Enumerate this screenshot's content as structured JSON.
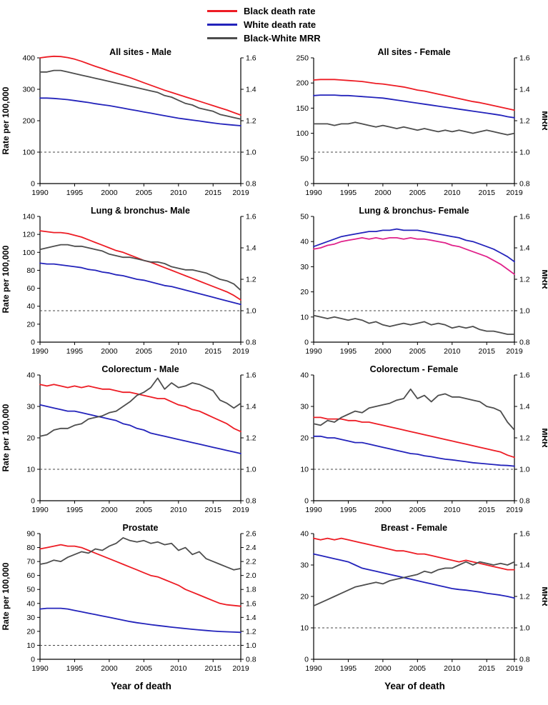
{
  "legend": {
    "items": [
      {
        "label": "Black death rate",
        "color": "#ed1c24"
      },
      {
        "label": "White death rate",
        "color": "#2323bb"
      },
      {
        "label": "Black-White MRR",
        "color": "#4d4d4d"
      }
    ]
  },
  "xlabel": "Year of death",
  "ylabel_left": "Rate per 100,000",
  "ylabel_right": "MRR",
  "years": [
    1990,
    1991,
    1992,
    1993,
    1994,
    1995,
    1996,
    1997,
    1998,
    1999,
    2000,
    2001,
    2002,
    2003,
    2004,
    2005,
    2006,
    2007,
    2008,
    2009,
    2010,
    2011,
    2012,
    2013,
    2014,
    2015,
    2016,
    2017,
    2018,
    2019
  ],
  "x_ticks": [
    1990,
    1995,
    2000,
    2005,
    2010,
    2015,
    2019
  ],
  "chart_data": [
    {
      "type": "line",
      "title": "All sites - Male",
      "left_axis": {
        "min": 0,
        "max": 400,
        "step": 100
      },
      "right_axis": {
        "min": 0.8,
        "max": 1.6,
        "step": 0.2
      },
      "reference_line_right": 1.0,
      "show_left_label": true,
      "show_right_label": false,
      "series": [
        {
          "name": "Black death rate",
          "axis": "left",
          "color": "#ed1c24",
          "values": [
            400,
            403,
            405,
            404,
            401,
            396,
            389,
            381,
            373,
            366,
            358,
            351,
            344,
            337,
            329,
            321,
            313,
            305,
            297,
            290,
            283,
            276,
            269,
            262,
            255,
            248,
            241,
            234,
            226,
            218
          ]
        },
        {
          "name": "White death rate",
          "axis": "left",
          "color": "#2323bb",
          "values": [
            272,
            272,
            271,
            269,
            267,
            264,
            261,
            258,
            254,
            251,
            248,
            244,
            240,
            236,
            232,
            228,
            224,
            220,
            216,
            212,
            208,
            205,
            202,
            199,
            196,
            193,
            190,
            188,
            186,
            184
          ]
        },
        {
          "name": "Black-White MRR",
          "axis": "right",
          "color": "#4d4d4d",
          "values": [
            1.51,
            1.51,
            1.52,
            1.52,
            1.51,
            1.5,
            1.49,
            1.48,
            1.47,
            1.46,
            1.45,
            1.44,
            1.43,
            1.42,
            1.41,
            1.4,
            1.39,
            1.38,
            1.36,
            1.35,
            1.33,
            1.31,
            1.3,
            1.28,
            1.27,
            1.26,
            1.24,
            1.23,
            1.22,
            1.21
          ]
        }
      ]
    },
    {
      "type": "line",
      "title": "All sites - Female",
      "left_axis": {
        "min": 0,
        "max": 250,
        "step": 50
      },
      "right_axis": {
        "min": 0.8,
        "max": 1.6,
        "step": 0.2
      },
      "reference_line_right": 1.0,
      "show_left_label": false,
      "show_right_label": true,
      "series": [
        {
          "name": "Black death rate",
          "axis": "left",
          "color": "#ed1c24",
          "values": [
            206,
            207,
            207,
            207,
            206,
            205,
            204,
            203,
            201,
            199,
            198,
            196,
            194,
            192,
            189,
            186,
            184,
            181,
            178,
            175,
            172,
            169,
            166,
            163,
            161,
            158,
            155,
            152,
            149,
            146
          ]
        },
        {
          "name": "White death rate",
          "axis": "left",
          "color": "#2323bb",
          "values": [
            175,
            176,
            176,
            176,
            175,
            175,
            174,
            173,
            172,
            171,
            170,
            168,
            166,
            164,
            162,
            160,
            158,
            156,
            154,
            152,
            150,
            148,
            146,
            144,
            142,
            140,
            138,
            136,
            133,
            131
          ]
        },
        {
          "name": "Black-White MRR",
          "axis": "right",
          "color": "#4d4d4d",
          "values": [
            1.18,
            1.18,
            1.18,
            1.17,
            1.18,
            1.18,
            1.19,
            1.18,
            1.17,
            1.16,
            1.17,
            1.16,
            1.15,
            1.16,
            1.15,
            1.14,
            1.15,
            1.14,
            1.13,
            1.14,
            1.13,
            1.14,
            1.13,
            1.12,
            1.13,
            1.14,
            1.13,
            1.12,
            1.11,
            1.12
          ]
        }
      ]
    },
    {
      "type": "line",
      "title": "Lung & bronchus- Male",
      "left_axis": {
        "min": 0,
        "max": 140,
        "step": 20
      },
      "right_axis": {
        "min": 0.8,
        "max": 1.6,
        "step": 0.2
      },
      "reference_line_right": 1.0,
      "show_left_label": true,
      "show_right_label": false,
      "series": [
        {
          "name": "Black death rate",
          "axis": "left",
          "color": "#ed1c24",
          "values": [
            124,
            123,
            122,
            122,
            121,
            119,
            117,
            114,
            111,
            108,
            105,
            102,
            100,
            97,
            94,
            91,
            89,
            86,
            83,
            80,
            77,
            74,
            71,
            68,
            65,
            62,
            59,
            56,
            52,
            47
          ]
        },
        {
          "name": "White death rate",
          "axis": "left",
          "color": "#2323bb",
          "values": [
            88,
            87,
            87,
            86,
            85,
            84,
            83,
            81,
            80,
            78,
            77,
            75,
            74,
            72,
            70,
            69,
            67,
            65,
            63,
            62,
            60,
            58,
            56,
            54,
            52,
            50,
            48,
            46,
            44,
            42
          ]
        },
        {
          "name": "Black-White MRR",
          "axis": "right",
          "color": "#4d4d4d",
          "values": [
            1.39,
            1.4,
            1.41,
            1.42,
            1.42,
            1.41,
            1.41,
            1.4,
            1.39,
            1.38,
            1.36,
            1.35,
            1.34,
            1.34,
            1.33,
            1.32,
            1.31,
            1.31,
            1.3,
            1.28,
            1.27,
            1.26,
            1.26,
            1.25,
            1.24,
            1.22,
            1.2,
            1.19,
            1.17,
            1.13
          ]
        }
      ]
    },
    {
      "type": "line",
      "title": "Lung & bronchus- Female",
      "left_axis": {
        "min": 0,
        "max": 50,
        "step": 10
      },
      "right_axis": {
        "min": 0.8,
        "max": 1.6,
        "step": 0.2
      },
      "reference_line_right": 1.0,
      "show_left_label": false,
      "show_right_label": true,
      "series": [
        {
          "name": "Black death rate",
          "axis": "left",
          "color": "#e0218a",
          "values": [
            37,
            37.5,
            38.5,
            39,
            40,
            40.5,
            41,
            41.5,
            41,
            41.5,
            41,
            41.5,
            41.5,
            41,
            41.5,
            41,
            41,
            40.5,
            40,
            39.5,
            38.5,
            38,
            37,
            36,
            35,
            34,
            32.5,
            31,
            29,
            27
          ]
        },
        {
          "name": "White death rate",
          "axis": "left",
          "color": "#2323bb",
          "values": [
            38,
            39,
            40,
            41,
            42,
            42.5,
            43,
            43.5,
            44,
            44,
            44.5,
            44.5,
            45,
            44.5,
            44.5,
            44.5,
            44,
            43.5,
            43,
            42.5,
            42,
            41.5,
            40.5,
            40,
            39,
            38,
            37,
            35.5,
            34,
            32
          ]
        },
        {
          "name": "Black-White MRR",
          "axis": "right",
          "color": "#4d4d4d",
          "values": [
            0.97,
            0.96,
            0.95,
            0.96,
            0.95,
            0.94,
            0.95,
            0.94,
            0.92,
            0.93,
            0.91,
            0.9,
            0.91,
            0.92,
            0.91,
            0.92,
            0.93,
            0.91,
            0.92,
            0.91,
            0.89,
            0.9,
            0.89,
            0.9,
            0.88,
            0.87,
            0.87,
            0.86,
            0.85,
            0.85
          ]
        }
      ]
    },
    {
      "type": "line",
      "title": "Colorectum - Male",
      "left_axis": {
        "min": 0,
        "max": 40,
        "step": 10
      },
      "right_axis": {
        "min": 0.8,
        "max": 1.6,
        "step": 0.2
      },
      "reference_line_right": 1.0,
      "show_left_label": true,
      "show_right_label": false,
      "series": [
        {
          "name": "Black death rate",
          "axis": "left",
          "color": "#ed1c24",
          "values": [
            37,
            36.5,
            37,
            36.5,
            36,
            36.5,
            36,
            36.5,
            36,
            35.5,
            35.5,
            35,
            34.5,
            34.5,
            34,
            33.5,
            33,
            32.5,
            32.5,
            31.5,
            30.5,
            30,
            29,
            28.5,
            27.5,
            26.5,
            25.5,
            24.5,
            23,
            22
          ]
        },
        {
          "name": "White death rate",
          "axis": "left",
          "color": "#2323bb",
          "values": [
            30.5,
            30,
            29.5,
            29,
            28.5,
            28.5,
            28,
            27.5,
            27,
            26.5,
            26,
            25.5,
            24.5,
            24,
            23,
            22.5,
            21.5,
            21,
            20.5,
            20,
            19.5,
            19,
            18.5,
            18,
            17.5,
            17,
            16.5,
            16,
            15.5,
            15
          ]
        },
        {
          "name": "Black-White MRR",
          "axis": "right",
          "color": "#4d4d4d",
          "values": [
            1.21,
            1.22,
            1.25,
            1.26,
            1.26,
            1.28,
            1.29,
            1.32,
            1.33,
            1.34,
            1.36,
            1.37,
            1.4,
            1.43,
            1.47,
            1.49,
            1.52,
            1.58,
            1.51,
            1.55,
            1.52,
            1.53,
            1.55,
            1.54,
            1.52,
            1.5,
            1.44,
            1.42,
            1.39,
            1.42
          ]
        }
      ]
    },
    {
      "type": "line",
      "title": "Colorectum - Female",
      "left_axis": {
        "min": 0,
        "max": 40,
        "step": 10
      },
      "right_axis": {
        "min": 0.8,
        "max": 1.6,
        "step": 0.2
      },
      "reference_line_right": 1.0,
      "show_left_label": false,
      "show_right_label": true,
      "series": [
        {
          "name": "Black death rate",
          "axis": "left",
          "color": "#ed1c24",
          "values": [
            26.5,
            26.5,
            26,
            26,
            26,
            25.5,
            25.5,
            25,
            25,
            24.5,
            24,
            23.5,
            23,
            22.5,
            22,
            21.5,
            21,
            20.5,
            20,
            19.5,
            19,
            18.5,
            18,
            17.5,
            17,
            16.5,
            16,
            15.5,
            14.5,
            13.8
          ]
        },
        {
          "name": "White death rate",
          "axis": "left",
          "color": "#2323bb",
          "values": [
            20.5,
            20.5,
            20,
            20,
            19.5,
            19,
            18.5,
            18.5,
            18,
            17.5,
            17,
            16.5,
            16,
            15.5,
            15,
            14.8,
            14.3,
            14,
            13.6,
            13.2,
            13,
            12.7,
            12.4,
            12.1,
            11.9,
            11.7,
            11.5,
            11.3,
            11.2,
            11
          ]
        },
        {
          "name": "Black-White MRR",
          "axis": "right",
          "color": "#4d4d4d",
          "values": [
            1.29,
            1.28,
            1.31,
            1.3,
            1.33,
            1.35,
            1.37,
            1.36,
            1.39,
            1.4,
            1.41,
            1.42,
            1.44,
            1.45,
            1.51,
            1.45,
            1.47,
            1.43,
            1.47,
            1.48,
            1.46,
            1.46,
            1.45,
            1.44,
            1.43,
            1.4,
            1.39,
            1.37,
            1.3,
            1.25
          ]
        }
      ]
    },
    {
      "type": "line",
      "title": "Prostate",
      "left_axis": {
        "min": 0,
        "max": 90,
        "step": 10
      },
      "right_axis": {
        "min": 0.8,
        "max": 2.6,
        "step": 0.2
      },
      "reference_line_right": 1.0,
      "show_left_label": true,
      "show_right_label": false,
      "series": [
        {
          "name": "Black death rate",
          "axis": "left",
          "color": "#ed1c24",
          "values": [
            79,
            80,
            81,
            82,
            81,
            81,
            80,
            78,
            76,
            74,
            72,
            70,
            68,
            66,
            64,
            62,
            60,
            59,
            57,
            55,
            53,
            50,
            48,
            46,
            44,
            42,
            40,
            39,
            38.5,
            38
          ]
        },
        {
          "name": "White death rate",
          "axis": "left",
          "color": "#2323bb",
          "values": [
            36,
            36.5,
            36.5,
            36.5,
            36,
            35,
            34,
            33,
            32,
            31,
            30,
            29,
            28,
            27,
            26.2,
            25.5,
            24.8,
            24.2,
            23.6,
            23,
            22.5,
            22,
            21.5,
            21,
            20.6,
            20.2,
            19.9,
            19.7,
            19.5,
            19.3
          ]
        },
        {
          "name": "Black-White MRR",
          "axis": "right",
          "color": "#4d4d4d",
          "values": [
            2.16,
            2.18,
            2.22,
            2.2,
            2.26,
            2.3,
            2.34,
            2.32,
            2.38,
            2.36,
            2.42,
            2.46,
            2.54,
            2.5,
            2.48,
            2.5,
            2.46,
            2.48,
            2.44,
            2.46,
            2.36,
            2.4,
            2.3,
            2.34,
            2.24,
            2.2,
            2.16,
            2.12,
            2.08,
            2.1
          ]
        }
      ]
    },
    {
      "type": "line",
      "title": "Breast - Female",
      "left_axis": {
        "min": 0,
        "max": 40,
        "step": 10
      },
      "right_axis": {
        "min": 0.8,
        "max": 1.6,
        "step": 0.2
      },
      "reference_line_right": 1.0,
      "show_left_label": false,
      "show_right_label": true,
      "series": [
        {
          "name": "Black death rate",
          "axis": "left",
          "color": "#ed1c24",
          "values": [
            38.5,
            38,
            38.5,
            38,
            38.5,
            38,
            37.5,
            37,
            36.5,
            36,
            35.5,
            35,
            34.5,
            34.5,
            34,
            33.5,
            33.5,
            33,
            32.5,
            32,
            31.5,
            31,
            31.5,
            31,
            30.5,
            30,
            29.5,
            29,
            28.5,
            28.5
          ]
        },
        {
          "name": "White death rate",
          "axis": "left",
          "color": "#2323bb",
          "values": [
            33.5,
            33,
            32.5,
            32,
            31.5,
            31,
            30,
            29,
            28.5,
            28,
            27.5,
            27,
            26.5,
            26,
            25.5,
            25,
            24.5,
            24,
            23.5,
            23,
            22.5,
            22.2,
            22,
            21.7,
            21.4,
            21,
            20.7,
            20.4,
            20,
            19.5
          ]
        },
        {
          "name": "Black-White MRR",
          "axis": "right",
          "color": "#4d4d4d",
          "values": [
            1.14,
            1.16,
            1.18,
            1.2,
            1.22,
            1.24,
            1.26,
            1.27,
            1.28,
            1.29,
            1.28,
            1.3,
            1.31,
            1.32,
            1.33,
            1.34,
            1.36,
            1.35,
            1.37,
            1.38,
            1.38,
            1.4,
            1.42,
            1.4,
            1.42,
            1.41,
            1.4,
            1.41,
            1.4,
            1.42
          ]
        }
      ]
    }
  ]
}
